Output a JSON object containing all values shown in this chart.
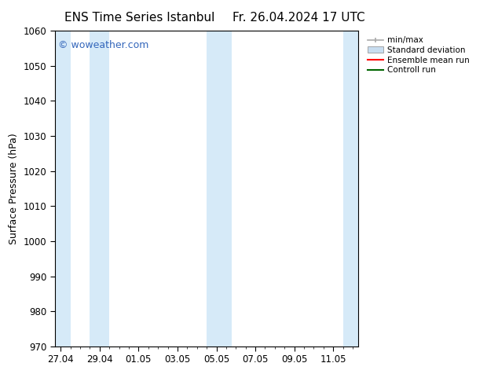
{
  "title": "ENS Time Series Istanbul",
  "title_right": "Fr. 26.04.2024 17 UTC",
  "ylabel": "Surface Pressure (hPa)",
  "ylim": [
    970,
    1060
  ],
  "yticks": [
    970,
    980,
    990,
    1000,
    1010,
    1020,
    1030,
    1040,
    1050,
    1060
  ],
  "x_tick_labels": [
    "27.04",
    "29.04",
    "01.05",
    "03.05",
    "05.05",
    "07.05",
    "09.05",
    "11.05"
  ],
  "x_tick_positions": [
    0,
    2,
    4,
    6,
    8,
    10,
    12,
    14
  ],
  "x_total_ticks": 16,
  "x_min": -0.3,
  "x_max": 15.3,
  "shaded_bands": [
    {
      "x_start": -0.3,
      "x_end": 0.5
    },
    {
      "x_start": 1.5,
      "x_end": 2.5
    },
    {
      "x_start": 7.5,
      "x_end": 8.8
    },
    {
      "x_start": 14.5,
      "x_end": 15.3
    }
  ],
  "band_color": "#d6eaf8",
  "background_color": "#ffffff",
  "watermark": "© woweather.com",
  "watermark_color": "#3366bb",
  "legend_items": [
    {
      "label": "min/max",
      "color": "#aaaaaa",
      "type": "errorbar"
    },
    {
      "label": "Standard deviation",
      "color": "#c8ddf0",
      "type": "rect"
    },
    {
      "label": "Ensemble mean run",
      "color": "#ff0000",
      "type": "line"
    },
    {
      "label": "Controll run",
      "color": "#006600",
      "type": "line"
    }
  ],
  "tick_font_size": 8.5,
  "label_font_size": 9,
  "title_font_size": 11,
  "minor_tick_every": 0.5,
  "spine_color": "#000000",
  "spine_linewidth": 0.8
}
